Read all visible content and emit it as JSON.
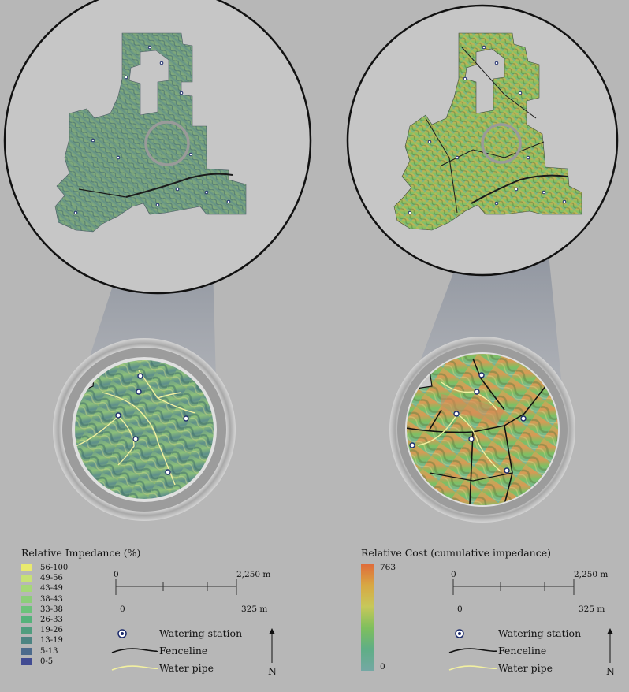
{
  "panels": {
    "left": {
      "legend_title": "Relative Impedance (%)",
      "classes": [
        {
          "label": "56-100",
          "color": "#e9ea6e"
        },
        {
          "label": "49-56",
          "color": "#c7e175"
        },
        {
          "label": "43-49",
          "color": "#a6d777"
        },
        {
          "label": "38-43",
          "color": "#8ccd79"
        },
        {
          "label": "33-38",
          "color": "#6cc27a"
        },
        {
          "label": "26-33",
          "color": "#55b27a"
        },
        {
          "label": "19-26",
          "color": "#4f9d7e"
        },
        {
          "label": "13-19",
          "color": "#4c8482"
        },
        {
          "label": "5-13",
          "color": "#4c6a8c"
        },
        {
          "label": "0-5",
          "color": "#414b92"
        }
      ]
    },
    "right": {
      "legend_title": "Relative Cost (cumulative impedance)",
      "ramp_max": "763",
      "ramp_min": "0",
      "ramp_colors": [
        "#e06a3a",
        "#d8a743",
        "#c7c85a",
        "#7fbf5d",
        "#5fae86",
        "#74a8a4"
      ]
    }
  },
  "scalebar": {
    "top_start": "0",
    "top_end": "2,250 m",
    "bottom_start": "0",
    "bottom_end": "325 m"
  },
  "key": {
    "watering_station": "Watering station",
    "fenceline": "Fenceline",
    "water_pipe": "Water pipe"
  },
  "north_label": "N",
  "colors": {
    "background": "#b7b7b7",
    "overview_circle": "#c4c4c4",
    "zoom_cone": "#8d939d",
    "water_pipe": "#f2f0a0",
    "station_fill": "#1b2a6b"
  }
}
